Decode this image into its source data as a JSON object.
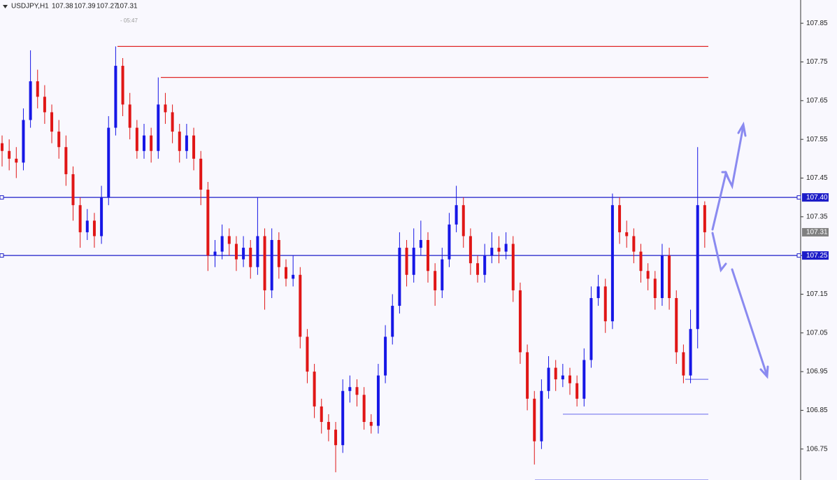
{
  "chart_data": {
    "type": "candlestick",
    "symbol": "USDJPY,H1",
    "timer": "- 05:47",
    "bull_color": "#1616e6",
    "bear_color": "#e01616",
    "ylim": [
      106.67,
      107.91
    ],
    "yticks": [
      107.85,
      107.75,
      107.65,
      107.55,
      107.45,
      107.35,
      107.25,
      107.15,
      107.05,
      106.95,
      106.85,
      106.75
    ],
    "ohlc": [
      [
        107.54,
        107.56,
        107.48,
        107.52
      ],
      [
        107.52,
        107.55,
        107.47,
        107.5
      ],
      [
        107.5,
        107.53,
        107.45,
        107.49
      ],
      [
        107.49,
        107.63,
        107.47,
        107.6
      ],
      [
        107.6,
        107.78,
        107.58,
        107.7
      ],
      [
        107.7,
        107.73,
        107.63,
        107.66
      ],
      [
        107.66,
        107.69,
        107.59,
        107.62
      ],
      [
        107.62,
        107.64,
        107.54,
        107.57
      ],
      [
        107.57,
        107.6,
        107.5,
        107.53
      ],
      [
        107.53,
        107.56,
        107.43,
        107.46
      ],
      [
        107.46,
        107.48,
        107.34,
        107.38
      ],
      [
        107.38,
        107.4,
        107.27,
        107.31
      ],
      [
        107.31,
        107.37,
        107.29,
        107.34
      ],
      [
        107.34,
        107.36,
        107.27,
        107.3
      ],
      [
        107.3,
        107.43,
        107.28,
        107.4
      ],
      [
        107.4,
        107.61,
        107.38,
        107.58
      ],
      [
        107.58,
        107.79,
        107.56,
        107.74
      ],
      [
        107.74,
        107.76,
        107.61,
        107.64
      ],
      [
        107.64,
        107.67,
        107.55,
        107.58
      ],
      [
        107.58,
        107.6,
        107.5,
        107.52
      ],
      [
        107.52,
        107.59,
        107.5,
        107.56
      ],
      [
        107.56,
        107.58,
        107.49,
        107.52
      ],
      [
        107.52,
        107.71,
        107.5,
        107.64
      ],
      [
        107.64,
        107.67,
        107.59,
        107.62
      ],
      [
        107.62,
        107.64,
        107.54,
        107.57
      ],
      [
        107.57,
        107.59,
        107.49,
        107.52
      ],
      [
        107.52,
        107.59,
        107.5,
        107.56
      ],
      [
        107.56,
        107.58,
        107.47,
        107.5
      ],
      [
        107.5,
        107.52,
        107.38,
        107.42
      ],
      [
        107.42,
        107.44,
        107.21,
        107.25
      ],
      [
        107.25,
        107.29,
        107.22,
        107.26
      ],
      [
        107.26,
        107.33,
        107.24,
        107.3
      ],
      [
        107.3,
        107.32,
        107.25,
        107.28
      ],
      [
        107.28,
        107.3,
        107.21,
        107.24
      ],
      [
        107.24,
        107.3,
        107.22,
        107.27
      ],
      [
        107.27,
        107.29,
        107.19,
        107.22
      ],
      [
        107.22,
        107.4,
        107.2,
        107.3
      ],
      [
        107.3,
        107.32,
        107.11,
        107.16
      ],
      [
        107.16,
        107.32,
        107.14,
        107.29
      ],
      [
        107.29,
        107.31,
        107.19,
        107.22
      ],
      [
        107.22,
        107.24,
        107.17,
        107.19
      ],
      [
        107.19,
        107.25,
        107.17,
        107.2
      ],
      [
        107.2,
        107.22,
        107.01,
        107.04
      ],
      [
        107.04,
        107.06,
        106.92,
        106.95
      ],
      [
        106.95,
        106.97,
        106.83,
        106.86
      ],
      [
        106.86,
        106.88,
        106.79,
        106.82
      ],
      [
        106.82,
        106.84,
        106.77,
        106.8
      ],
      [
        106.8,
        106.82,
        106.69,
        106.76
      ],
      [
        106.76,
        106.93,
        106.74,
        106.9
      ],
      [
        106.9,
        106.94,
        106.87,
        106.91
      ],
      [
        106.91,
        106.93,
        106.86,
        106.89
      ],
      [
        106.89,
        106.91,
        106.8,
        106.82
      ],
      [
        106.82,
        106.84,
        106.79,
        106.81
      ],
      [
        106.81,
        106.97,
        106.79,
        106.94
      ],
      [
        106.94,
        107.07,
        106.92,
        107.04
      ],
      [
        107.04,
        107.15,
        107.02,
        107.12
      ],
      [
        107.12,
        107.31,
        107.1,
        107.27
      ],
      [
        107.27,
        107.29,
        107.17,
        107.2
      ],
      [
        107.2,
        107.32,
        107.18,
        107.27
      ],
      [
        107.27,
        107.34,
        107.25,
        107.29
      ],
      [
        107.29,
        107.31,
        107.18,
        107.21
      ],
      [
        107.21,
        107.23,
        107.12,
        107.16
      ],
      [
        107.16,
        107.27,
        107.14,
        107.24
      ],
      [
        107.24,
        107.36,
        107.22,
        107.33
      ],
      [
        107.33,
        107.43,
        107.31,
        107.38
      ],
      [
        107.38,
        107.4,
        107.27,
        107.3
      ],
      [
        107.3,
        107.32,
        107.2,
        107.23
      ],
      [
        107.23,
        107.25,
        107.18,
        107.2
      ],
      [
        107.2,
        107.28,
        107.18,
        107.25
      ],
      [
        107.25,
        107.31,
        107.23,
        107.27
      ],
      [
        107.27,
        107.3,
        107.23,
        107.26
      ],
      [
        107.26,
        107.31,
        107.24,
        107.28
      ],
      [
        107.28,
        107.3,
        107.13,
        107.16
      ],
      [
        107.16,
        107.18,
        106.97,
        107.0
      ],
      [
        107.0,
        107.02,
        106.85,
        106.88
      ],
      [
        106.88,
        106.9,
        106.71,
        106.77
      ],
      [
        106.77,
        106.93,
        106.75,
        106.9
      ],
      [
        106.9,
        106.99,
        106.88,
        106.96
      ],
      [
        106.96,
        106.98,
        106.9,
        106.93
      ],
      [
        106.93,
        106.97,
        106.91,
        106.94
      ],
      [
        106.94,
        106.96,
        106.89,
        106.92
      ],
      [
        106.92,
        106.94,
        106.86,
        106.88
      ],
      [
        106.88,
        107.01,
        106.86,
        106.98
      ],
      [
        106.98,
        107.17,
        106.96,
        107.14
      ],
      [
        107.14,
        107.2,
        107.12,
        107.17
      ],
      [
        107.17,
        107.19,
        107.05,
        107.08
      ],
      [
        107.08,
        107.41,
        107.06,
        107.38
      ],
      [
        107.38,
        107.4,
        107.28,
        107.31
      ],
      [
        107.31,
        107.34,
        107.27,
        107.3
      ],
      [
        107.3,
        107.32,
        107.23,
        107.26
      ],
      [
        107.26,
        107.28,
        107.18,
        107.21
      ],
      [
        107.21,
        107.23,
        107.16,
        107.19
      ],
      [
        107.19,
        107.21,
        107.11,
        107.14
      ],
      [
        107.14,
        107.28,
        107.12,
        107.25
      ],
      [
        107.25,
        107.27,
        107.11,
        107.14
      ],
      [
        107.14,
        107.16,
        106.97,
        107.0
      ],
      [
        107.0,
        107.02,
        106.92,
        106.94
      ],
      [
        106.94,
        107.11,
        106.92,
        107.06
      ],
      [
        107.06,
        107.53,
        107.01,
        107.38
      ],
      [
        107.38,
        107.39,
        107.27,
        107.31
      ]
    ],
    "levels": [
      {
        "value": 107.79,
        "color": "#e02828"
      },
      {
        "value": 107.71,
        "color": "#e02828"
      },
      {
        "value": {
          "value": 107.4,
          "label": "107.40"
        },
        "color": "#1c1cc8"
      },
      {
        "value": {
          "value": 107.25,
          "label": "107.25"
        },
        "color": "#1c1cc8"
      },
      {
        "value": 106.93,
        "color": "#7878ee"
      },
      {
        "value": 106.84,
        "color": "#7878ee"
      },
      {
        "value": 106.67,
        "color": "#7878ee"
      }
    ]
  }
}
